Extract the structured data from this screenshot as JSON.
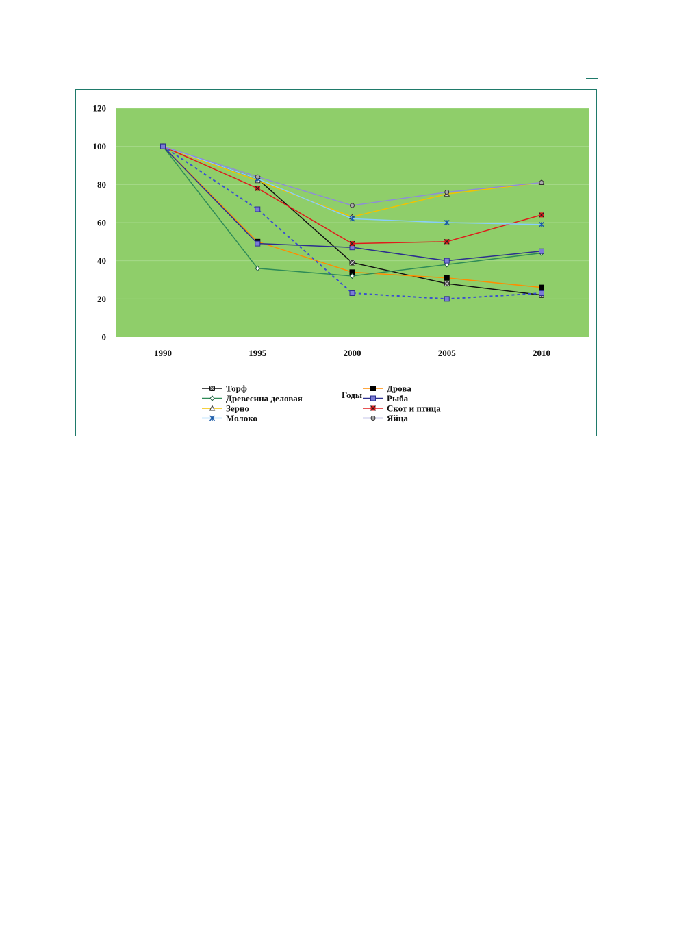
{
  "chart_data": {
    "type": "line",
    "title": "",
    "xlabel": "Годы",
    "ylabel": "",
    "ylim": [
      0,
      120
    ],
    "yticks": [
      "0",
      "20",
      "40",
      "60",
      "80",
      "100",
      "120"
    ],
    "categories": [
      "1990",
      "1995",
      "2000",
      "2005",
      "2010"
    ],
    "grid": true,
    "legend_position": "bottom",
    "plot_background": "#8fce6a",
    "series": [
      {
        "name": "Торф",
        "color": "#111111",
        "marker": "square-x",
        "dash": false,
        "values": [
          100,
          83,
          39,
          28,
          22
        ]
      },
      {
        "name": "Дрова",
        "color": "#ff8c00",
        "marker": "square-black",
        "dash": false,
        "values": [
          100,
          50,
          34,
          31,
          26
        ]
      },
      {
        "name": "Древесина деловая",
        "color": "#2e8b57",
        "marker": "diamond",
        "dash": false,
        "values": [
          100,
          36,
          32,
          38,
          44
        ]
      },
      {
        "name": "Рыба",
        "color": "#2b2f8f",
        "marker": "square-blue",
        "dash": false,
        "values": [
          100,
          49,
          47,
          40,
          45
        ]
      },
      {
        "name": "Зерно",
        "color": "#f2c200",
        "marker": "triangle",
        "dash": false,
        "values": [
          100,
          82,
          63,
          75,
          81
        ]
      },
      {
        "name": "Скот и птица",
        "color": "#e01b1b",
        "marker": "x-red",
        "dash": false,
        "values": [
          100,
          78,
          49,
          50,
          64
        ]
      },
      {
        "name": "Молоко",
        "color": "#87cefa",
        "marker": "star-blue",
        "dash": false,
        "values": [
          100,
          83,
          62,
          60,
          59
        ]
      },
      {
        "name": "Яйца",
        "color": "#8e8ed6",
        "marker": "circle",
        "dash": false,
        "values": [
          100,
          84,
          69,
          76,
          81
        ]
      },
      {
        "name": "",
        "color": "#3a4fd0",
        "marker": "square-blue",
        "dash": true,
        "values": [
          100,
          67,
          23,
          20,
          23
        ]
      }
    ]
  }
}
